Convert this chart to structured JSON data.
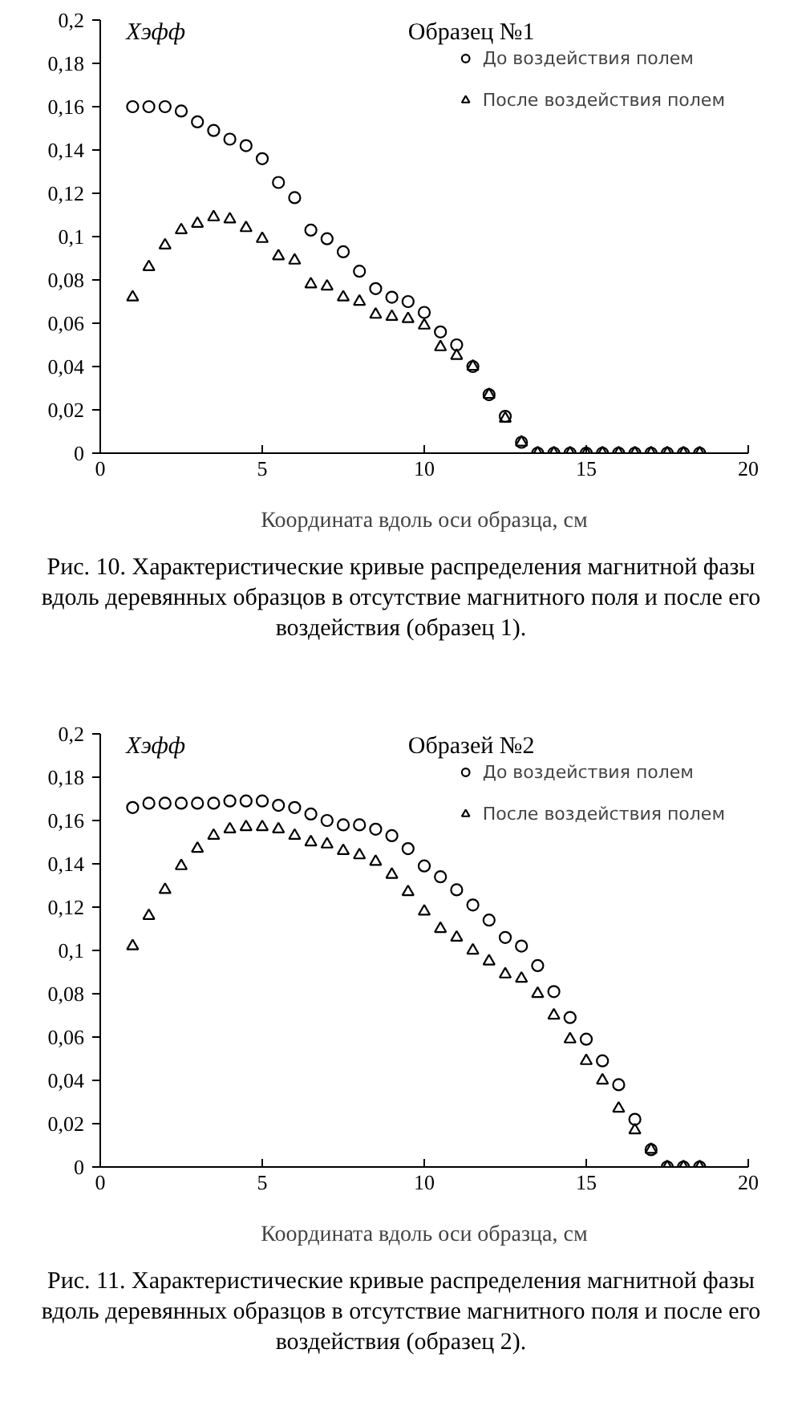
{
  "chart_data": [
    {
      "type": "scatter",
      "title": "Образец №1",
      "ylabel": "Хэфф",
      "xlabel": "Координата вдоль оси образца, см",
      "annotations": [
        "Рис. 10. Характеристические кривые распределения магнитной фазы вдоль деревянных образцов в отсутствие магнитного поля и после его воздействия (образец 1)."
      ],
      "x": [
        1,
        1.5,
        2,
        2.5,
        3,
        3.5,
        4,
        4.5,
        5,
        5.5,
        6,
        6.5,
        7,
        7.5,
        8,
        8.5,
        9,
        9.5,
        10,
        10.5,
        11,
        11.5,
        12,
        12.5,
        13,
        13.5,
        14,
        14.5,
        15,
        15.5,
        16,
        16.5,
        17,
        17.5,
        18,
        18.5
      ],
      "series": [
        {
          "name": "До воздействия полем",
          "color": "#000000",
          "marker": "circle",
          "values": [
            0.16,
            0.16,
            0.16,
            0.158,
            0.153,
            0.149,
            0.145,
            0.142,
            0.136,
            0.125,
            0.118,
            0.103,
            0.099,
            0.093,
            0.084,
            0.076,
            0.072,
            0.07,
            0.065,
            0.056,
            0.05,
            0.04,
            0.027,
            0.017,
            0.005,
            0,
            0,
            0,
            0,
            0,
            0,
            0,
            0,
            0,
            0,
            0
          ]
        },
        {
          "name": "После воздействия полем",
          "color": "#000000",
          "marker": "triangle",
          "values": [
            0.072,
            0.086,
            0.096,
            0.103,
            0.106,
            0.109,
            0.108,
            0.104,
            0.099,
            0.091,
            0.089,
            0.078,
            0.077,
            0.072,
            0.07,
            0.064,
            0.063,
            0.062,
            0.059,
            0.049,
            0.045,
            0.04,
            0.027,
            0.016,
            0.005,
            0,
            0,
            0,
            0,
            0,
            0,
            0,
            0,
            0,
            0,
            0
          ]
        }
      ],
      "xlim": [
        0,
        20
      ],
      "ylim": [
        0,
        0.2
      ],
      "xticks": [
        0,
        5,
        10,
        15,
        20
      ],
      "yticks": [
        0,
        {
          "value": 0.02,
          "label": "0,02"
        },
        {
          "value": 0.04,
          "label": "0,04"
        },
        {
          "value": 0.06,
          "label": "0,06"
        },
        {
          "value": 0.08,
          "label": "0,08"
        },
        {
          "value": 0.1,
          "label": "0,1"
        },
        {
          "value": 0.12,
          "label": "0,12"
        },
        {
          "value": 0.14,
          "label": "0,14"
        },
        {
          "value": 0.16,
          "label": "0,16"
        },
        {
          "value": 0.18,
          "label": "0,18"
        },
        {
          "value": 0.2,
          "label": "0,2"
        }
      ],
      "grid": false,
      "legend": "top right"
    },
    {
      "type": "scatter",
      "title": "Образей №2",
      "ylabel": "Хэфф",
      "xlabel": "Координата вдоль оси образца, см",
      "annotations": [
        "Рис. 11. Характеристические кривые распределения магнитной фазы вдоль деревянных образцов в отсутствие магнитного поля и после его воздействия (образец 2)."
      ],
      "x": [
        1,
        1.5,
        2,
        2.5,
        3,
        3.5,
        4,
        4.5,
        5,
        5.5,
        6,
        6.5,
        7,
        7.5,
        8,
        8.5,
        9,
        9.5,
        10,
        10.5,
        11,
        11.5,
        12,
        12.5,
        13,
        13.5,
        14,
        14.5,
        15,
        15.5,
        16,
        16.5,
        17,
        17.5,
        18,
        18.5
      ],
      "series": [
        {
          "name": "До воздействия полем",
          "color": "#000000",
          "marker": "circle",
          "values": [
            0.166,
            0.168,
            0.168,
            0.168,
            0.168,
            0.168,
            0.169,
            0.169,
            0.169,
            0.167,
            0.166,
            0.163,
            0.16,
            0.158,
            0.158,
            0.156,
            0.153,
            0.147,
            0.139,
            0.134,
            0.128,
            0.121,
            0.114,
            0.106,
            0.102,
            0.093,
            0.081,
            0.069,
            0.059,
            0.049,
            0.038,
            0.022,
            0.008,
            0,
            0,
            0
          ]
        },
        {
          "name": "После воздействия полем",
          "color": "#000000",
          "marker": "triangle",
          "values": [
            0.102,
            0.116,
            0.128,
            0.139,
            0.147,
            0.153,
            0.156,
            0.157,
            0.157,
            0.156,
            0.153,
            0.15,
            0.149,
            0.146,
            0.144,
            0.141,
            0.135,
            0.127,
            0.118,
            0.11,
            0.106,
            0.1,
            0.095,
            0.089,
            0.087,
            0.08,
            0.07,
            0.059,
            0.049,
            0.04,
            0.027,
            0.017,
            0.008,
            0,
            0,
            0
          ]
        }
      ],
      "xlim": [
        0,
        20
      ],
      "ylim": [
        0,
        0.2
      ],
      "xticks": [
        0,
        5,
        10,
        15,
        20
      ],
      "yticks": [
        0,
        {
          "value": 0.02,
          "label": "0,02"
        },
        {
          "value": 0.04,
          "label": "0,04"
        },
        {
          "value": 0.06,
          "label": "0,06"
        },
        {
          "value": 0.08,
          "label": "0,08"
        },
        {
          "value": 0.1,
          "label": "0,1"
        },
        {
          "value": 0.12,
          "label": "0,12"
        },
        {
          "value": 0.14,
          "label": "0,14"
        },
        {
          "value": 0.16,
          "label": "0,16"
        },
        {
          "value": 0.18,
          "label": "0,18"
        },
        {
          "value": 0.2,
          "label": "0,2"
        }
      ],
      "grid": false,
      "legend": "top right"
    }
  ]
}
